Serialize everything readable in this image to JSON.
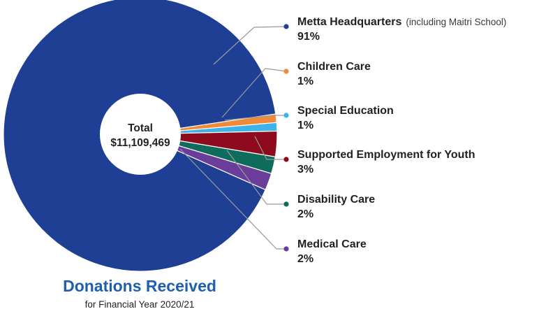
{
  "title": "Donations Received",
  "subtitle": "for Financial Year 2020/21",
  "center": {
    "label": "Total",
    "value": "$11,109,469"
  },
  "chart_data": {
    "type": "pie",
    "style": "donut",
    "title": "Donations Received",
    "subtitle": "for Financial Year 2020/21",
    "total_label": "Total",
    "total": "$11,109,469",
    "legend_position": "right",
    "slices": [
      {
        "name": "Metta Headquarters",
        "note": "(including Maitri School)",
        "value": 91,
        "label": "91%",
        "color": "#1e3f94"
      },
      {
        "name": "Children Care",
        "note": "",
        "value": 1,
        "label": "1%",
        "color": "#ef8a38"
      },
      {
        "name": "Special Education",
        "note": "",
        "value": 1,
        "label": "1%",
        "color": "#3eb3e8"
      },
      {
        "name": "Supported Employment for Youth",
        "note": "",
        "value": 3,
        "label": "3%",
        "color": "#8e0b1e"
      },
      {
        "name": "Disability Care",
        "note": "",
        "value": 2,
        "label": "2%",
        "color": "#0f6b5b"
      },
      {
        "name": "Medical Care",
        "note": "",
        "value": 2,
        "label": "2%",
        "color": "#6a3d9a"
      }
    ]
  }
}
